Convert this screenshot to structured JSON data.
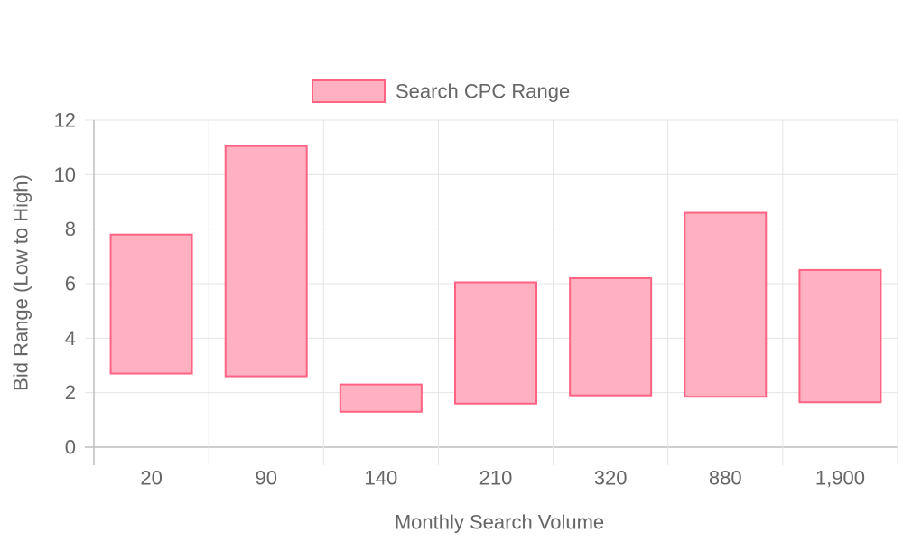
{
  "chart_data": {
    "type": "bar",
    "subtype": "floating-range",
    "categories": [
      "20",
      "90",
      "140",
      "210",
      "320",
      "880",
      "1,900"
    ],
    "series": [
      {
        "name": "Search CPC Range",
        "ranges": [
          [
            2.7,
            7.8
          ],
          [
            2.6,
            11.05
          ],
          [
            1.3,
            2.3
          ],
          [
            1.6,
            6.05
          ],
          [
            1.9,
            6.2
          ],
          [
            1.85,
            8.6
          ],
          [
            1.65,
            6.5
          ]
        ]
      }
    ],
    "xlabel": "Monthly Search Volume",
    "ylabel": "Bid Range (Low to High)",
    "ylim": [
      0,
      12
    ],
    "yticks": [
      0,
      2,
      4,
      6,
      8,
      10,
      12
    ],
    "grid": true,
    "legend": "top-center",
    "colors": {
      "fill": "#ffb1c1",
      "stroke": "#ff6384",
      "grid": "#e5e5e5",
      "axis": "#c9c9c9",
      "text": "#666666"
    }
  }
}
